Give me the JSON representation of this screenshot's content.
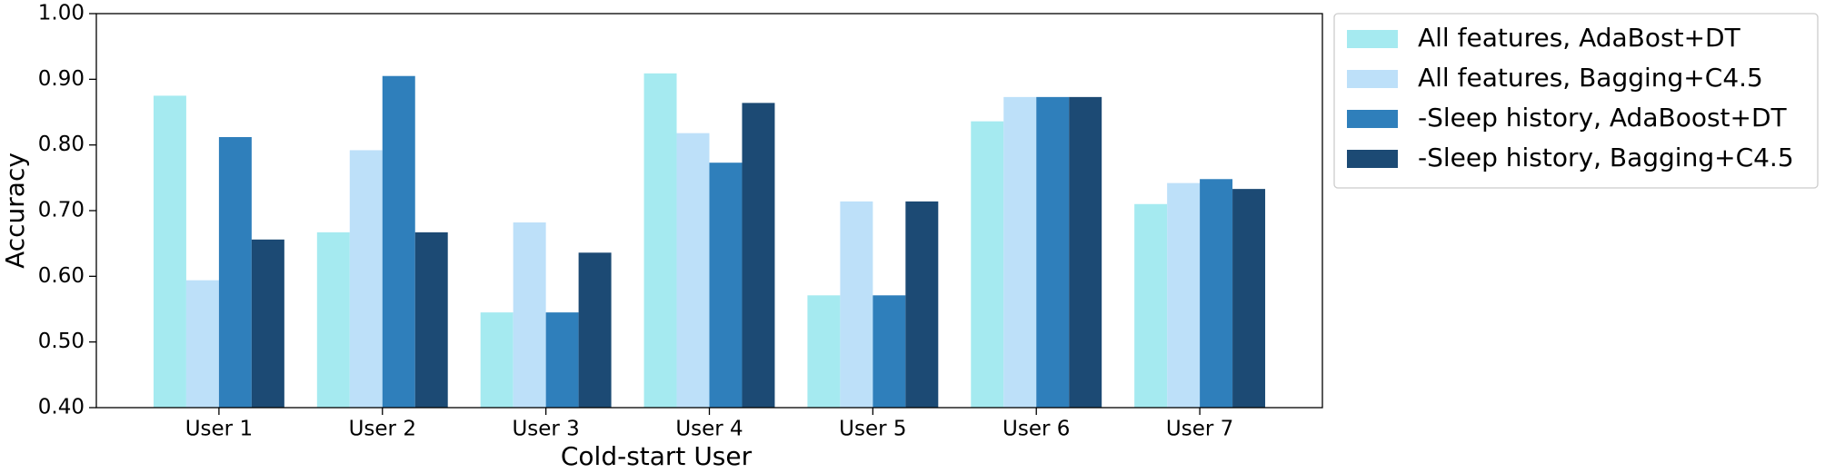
{
  "chart_data": {
    "type": "bar",
    "x_label": "Cold-start User",
    "y_label": "Accuracy",
    "categories": [
      "User 1",
      "User 2",
      "User 3",
      "User 4",
      "User 5",
      "User 6",
      "User 7"
    ],
    "series": [
      {
        "name": "All features, AdaBost+DT",
        "color": "#a5eaf0",
        "values": [
          0.875,
          0.667,
          0.545,
          0.909,
          0.571,
          0.836,
          0.71
        ]
      },
      {
        "name": "All features, Bagging+C4.5",
        "color": "#bde0f9",
        "values": [
          0.594,
          0.792,
          0.682,
          0.818,
          0.714,
          0.873,
          0.742
        ]
      },
      {
        "name": "-Sleep history, AdaBoost+DT",
        "color": "#2f7fbb",
        "values": [
          0.812,
          0.905,
          0.545,
          0.773,
          0.571,
          0.873,
          0.748
        ]
      },
      {
        "name": "-Sleep history, Bagging+C4.5",
        "color": "#1c4a74",
        "values": [
          0.656,
          0.667,
          0.636,
          0.864,
          0.714,
          0.873,
          0.733
        ]
      }
    ],
    "ylim": [
      0.4,
      1.0
    ],
    "yticks": [
      {
        "value": 0.4,
        "label": "0.40"
      },
      {
        "value": 0.5,
        "label": "0.50"
      },
      {
        "value": 0.6,
        "label": "0.60"
      },
      {
        "value": 0.7,
        "label": "0.70"
      },
      {
        "value": 0.8,
        "label": "0.80"
      },
      {
        "value": 0.9,
        "label": "0.90"
      },
      {
        "value": 1.0,
        "label": "1.00"
      }
    ],
    "legend": "outside-right"
  }
}
